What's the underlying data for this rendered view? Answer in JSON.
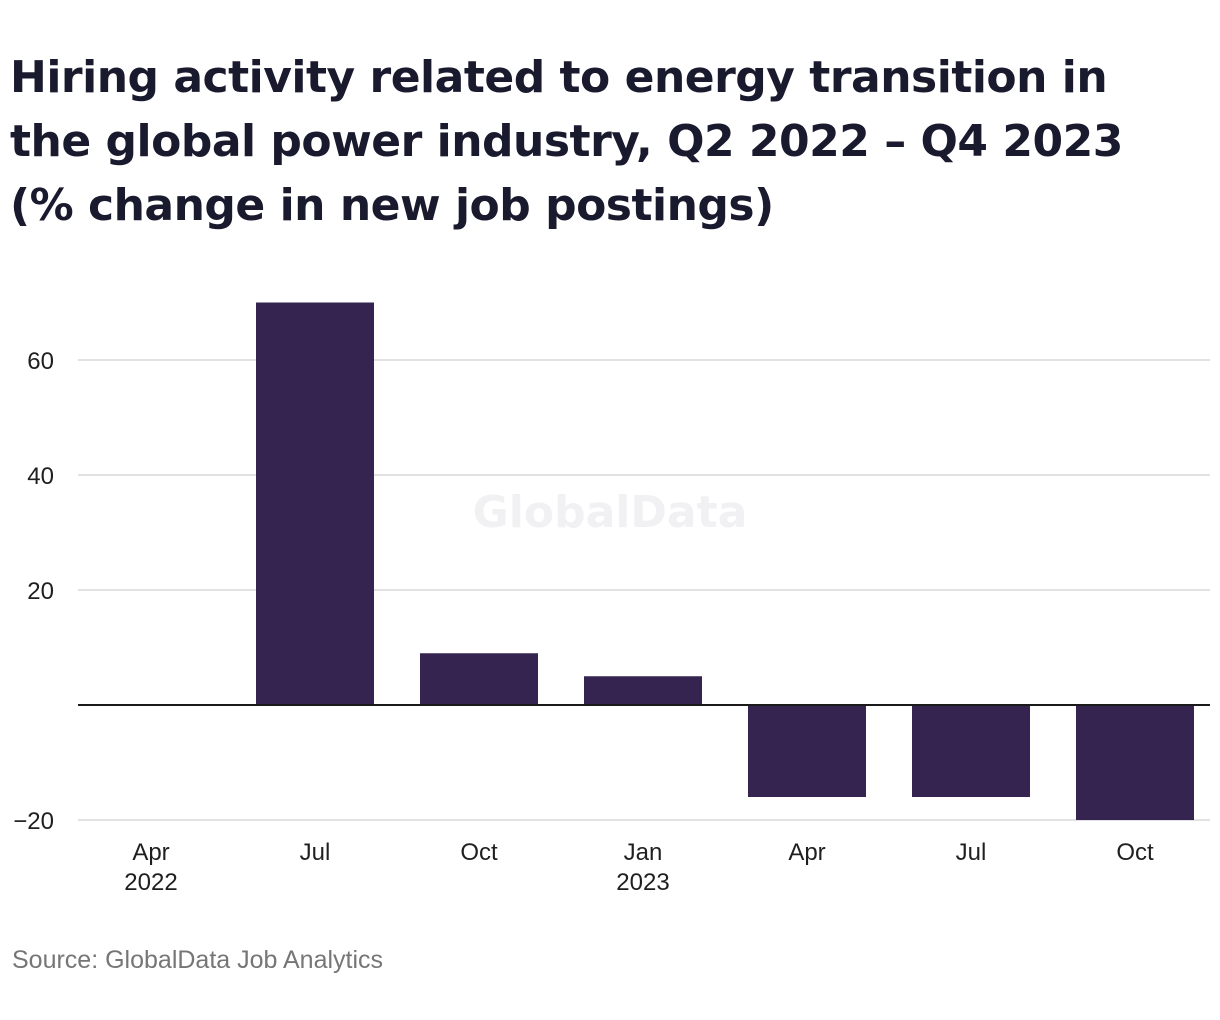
{
  "chart_data": {
    "type": "bar",
    "title": "Hiring activity related to energy transition in the global power industry, Q2 2022 – Q4 2023 (% change in new job postings)",
    "categories": [
      "Q2 2022",
      "Q3 2022",
      "Q4 2022",
      "Q1 2023",
      "Q2 2023",
      "Q3 2023",
      "Q4 2023"
    ],
    "x_tick_labels": [
      [
        "Apr",
        "2022"
      ],
      [
        "Jul"
      ],
      [
        "Oct"
      ],
      [
        "Jan",
        "2023"
      ],
      [
        "Apr"
      ],
      [
        "Jul"
      ],
      [
        "Oct"
      ]
    ],
    "values": [
      0,
      70,
      9,
      5,
      -16,
      -16,
      -20
    ],
    "y_ticks": [
      60,
      40,
      20,
      -20
    ],
    "y_tick_labels": [
      "60",
      "40",
      "20",
      "−20"
    ],
    "ylim": [
      -20,
      70
    ],
    "xlabel": "",
    "ylabel": "",
    "grid": true,
    "legend": "none",
    "bar_color": "#352450",
    "grid_color": "#d9d9d9",
    "zero_line_color": "#1a1a1a"
  },
  "watermark": "GlobalData",
  "source": "Source: GlobalData Job Analytics"
}
